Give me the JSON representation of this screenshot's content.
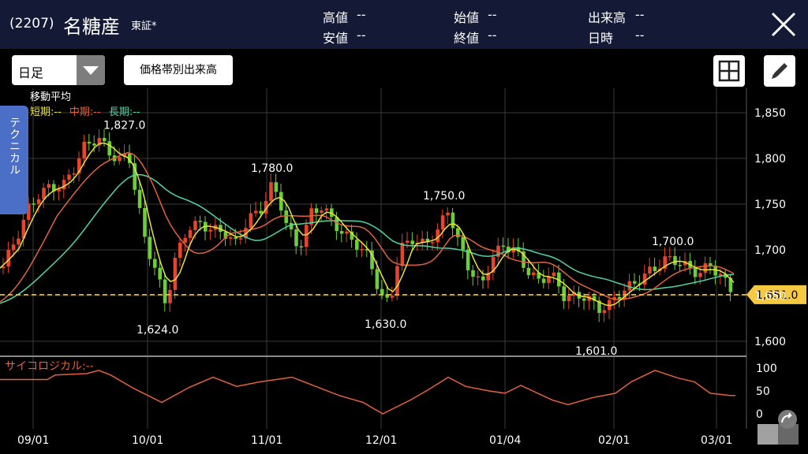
{
  "header": {
    "code": "(2207)",
    "name": "名糖産",
    "exchange": "東証*",
    "quote": [
      {
        "label": "高値",
        "value": "--"
      },
      {
        "label": "安値",
        "value": "--"
      },
      {
        "label": "始値",
        "value": "--"
      },
      {
        "label": "終値",
        "value": "--"
      },
      {
        "label": "出来高",
        "value": "--"
      },
      {
        "label": "日時",
        "value": "--"
      }
    ]
  },
  "toolbar": {
    "period": "日足",
    "volume_by_price": "価格帯別出来高"
  },
  "side_tab": "テクニカル",
  "legend": {
    "title": "移動平均",
    "short": "短期:--",
    "mid": "中期:--",
    "long": "長期:--"
  },
  "colors": {
    "header_bg": "#141a36",
    "up": "#e8432b",
    "down": "#6ccf3a",
    "ma_short": "#e8e33c",
    "ma_mid": "#e0623e",
    "ma_long": "#4fd6a3",
    "current_price": "#f6c942",
    "tab": "#4b6fc7",
    "psych": "#e0623e"
  },
  "chart_data": {
    "type": "candlestick",
    "y_axis": [
      "1,850",
      "1,800",
      "1,750",
      "1,700",
      "1,650",
      "1,600"
    ],
    "x_axis": [
      "09/01",
      "10/01",
      "11/01",
      "12/01",
      "01/04",
      "02/01",
      "03/01"
    ],
    "current_price": "1,651.0",
    "annotations": [
      "1,827.0",
      "1,624.0",
      "1,780.0",
      "1,630.0",
      "1,750.0",
      "1,601.0",
      "1,700.0"
    ],
    "oscillator": {
      "name": "サイコロジカル:--",
      "y_axis": [
        "100",
        "50",
        "0"
      ]
    }
  }
}
